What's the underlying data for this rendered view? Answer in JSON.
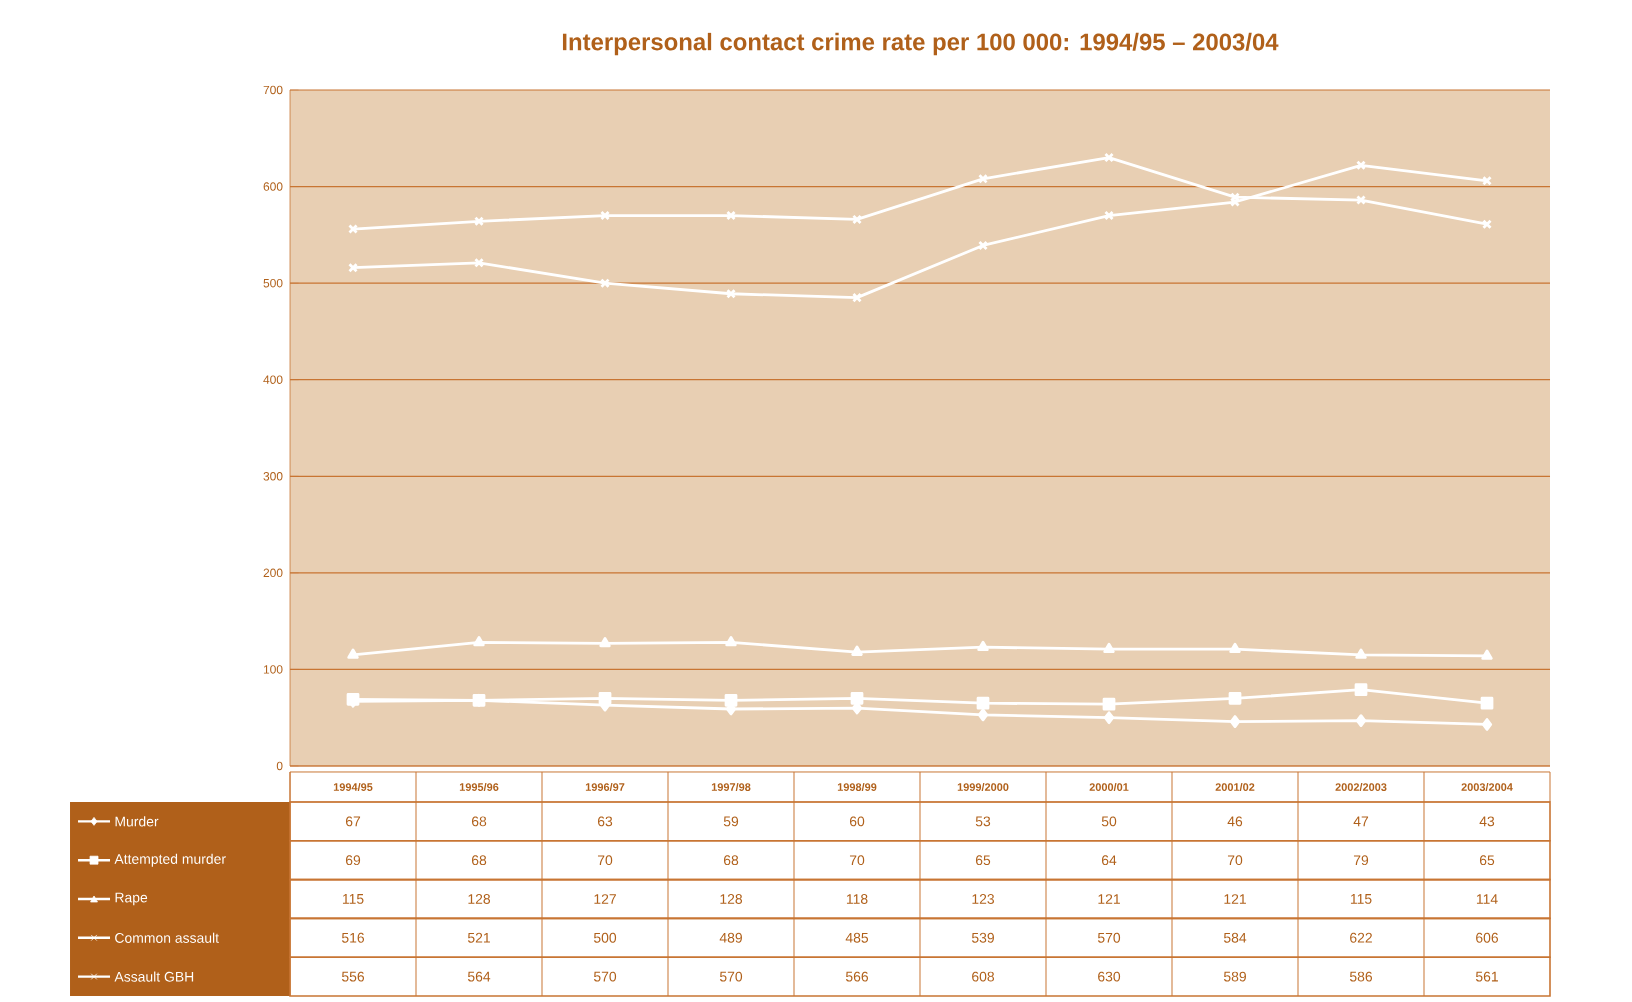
{
  "chart_data": {
    "type": "line",
    "title": "Interpersonal contact crime rate per 100 000: 1994/95 – 2003/04",
    "categories": [
      "1994/95",
      "1995/96",
      "1996/97",
      "1997/98",
      "1998/99",
      "1999/2000",
      "2000/01",
      "2001/02",
      "2002/2003",
      "2003/2004"
    ],
    "series": [
      {
        "name": "Murder",
        "color": "#ffffff",
        "marker": "diamond",
        "values": [
          67,
          68,
          63,
          59,
          60,
          53,
          50,
          46,
          47,
          43
        ]
      },
      {
        "name": "Attempted murder",
        "color": "#ffffff",
        "marker": "square",
        "values": [
          69,
          68,
          70,
          68,
          70,
          65,
          64,
          70,
          79,
          65
        ]
      },
      {
        "name": "Rape",
        "color": "#ffffff",
        "marker": "triangle",
        "values": [
          115,
          128,
          127,
          128,
          118,
          123,
          121,
          121,
          115,
          114
        ]
      },
      {
        "name": "Common assault",
        "color": "#ffffff",
        "marker": "cross",
        "values": [
          516,
          521,
          500,
          489,
          485,
          539,
          570,
          584,
          622,
          606
        ]
      },
      {
        "name": "Assault GBH",
        "color": "#ffffff",
        "marker": "cross",
        "values": [
          556,
          564,
          570,
          570,
          566,
          608,
          630,
          589,
          586,
          561
        ]
      }
    ],
    "ylim": [
      0,
      700
    ],
    "yticks": [
      0,
      100,
      200,
      300,
      400,
      500,
      600,
      700
    ],
    "grid": "y",
    "legend": "bottom left",
    "data_labels": true
  }
}
